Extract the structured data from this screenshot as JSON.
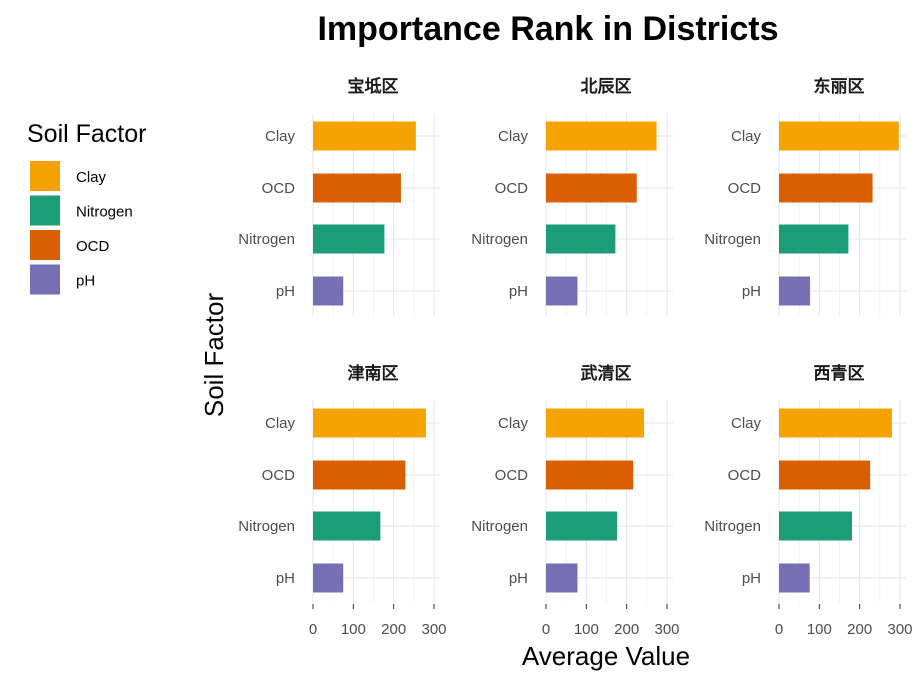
{
  "chart_data": {
    "type": "bar",
    "orientation": "horizontal",
    "title": "Importance Rank in Districts",
    "xlabel": "Average Value",
    "ylabel": "Soil Factor",
    "xlim": [
      0,
      300
    ],
    "x_ticks": [
      "0",
      "100",
      "200",
      "300"
    ],
    "categories": [
      "Clay",
      "OCD",
      "Nitrogen",
      "pH"
    ],
    "grid": true,
    "legend": {
      "title": "Soil Factor",
      "position": "left",
      "items": [
        {
          "label": "Clay",
          "color": "#F5A300"
        },
        {
          "label": "Nitrogen",
          "color": "#1B9E77"
        },
        {
          "label": "OCD",
          "color": "#D95F02"
        },
        {
          "label": "pH",
          "color": "#7570B3"
        }
      ]
    },
    "colors": {
      "Clay": "#F5A300",
      "OCD": "#D95F02",
      "Nitrogen": "#1B9E77",
      "pH": "#7570B3"
    },
    "facets": [
      {
        "name": "宝坻区",
        "values": {
          "Clay": 255,
          "OCD": 218,
          "Nitrogen": 177,
          "pH": 75
        }
      },
      {
        "name": "北辰区",
        "values": {
          "Clay": 274,
          "OCD": 225,
          "Nitrogen": 172,
          "pH": 78
        }
      },
      {
        "name": "东丽区",
        "values": {
          "Clay": 297,
          "OCD": 232,
          "Nitrogen": 172,
          "pH": 77
        }
      },
      {
        "name": "津南区",
        "values": {
          "Clay": 280,
          "OCD": 229,
          "Nitrogen": 167,
          "pH": 75
        }
      },
      {
        "name": "武清区",
        "values": {
          "Clay": 243,
          "OCD": 216,
          "Nitrogen": 176,
          "pH": 78
        }
      },
      {
        "name": "西青区",
        "values": {
          "Clay": 280,
          "OCD": 226,
          "Nitrogen": 181,
          "pH": 76
        }
      }
    ]
  }
}
